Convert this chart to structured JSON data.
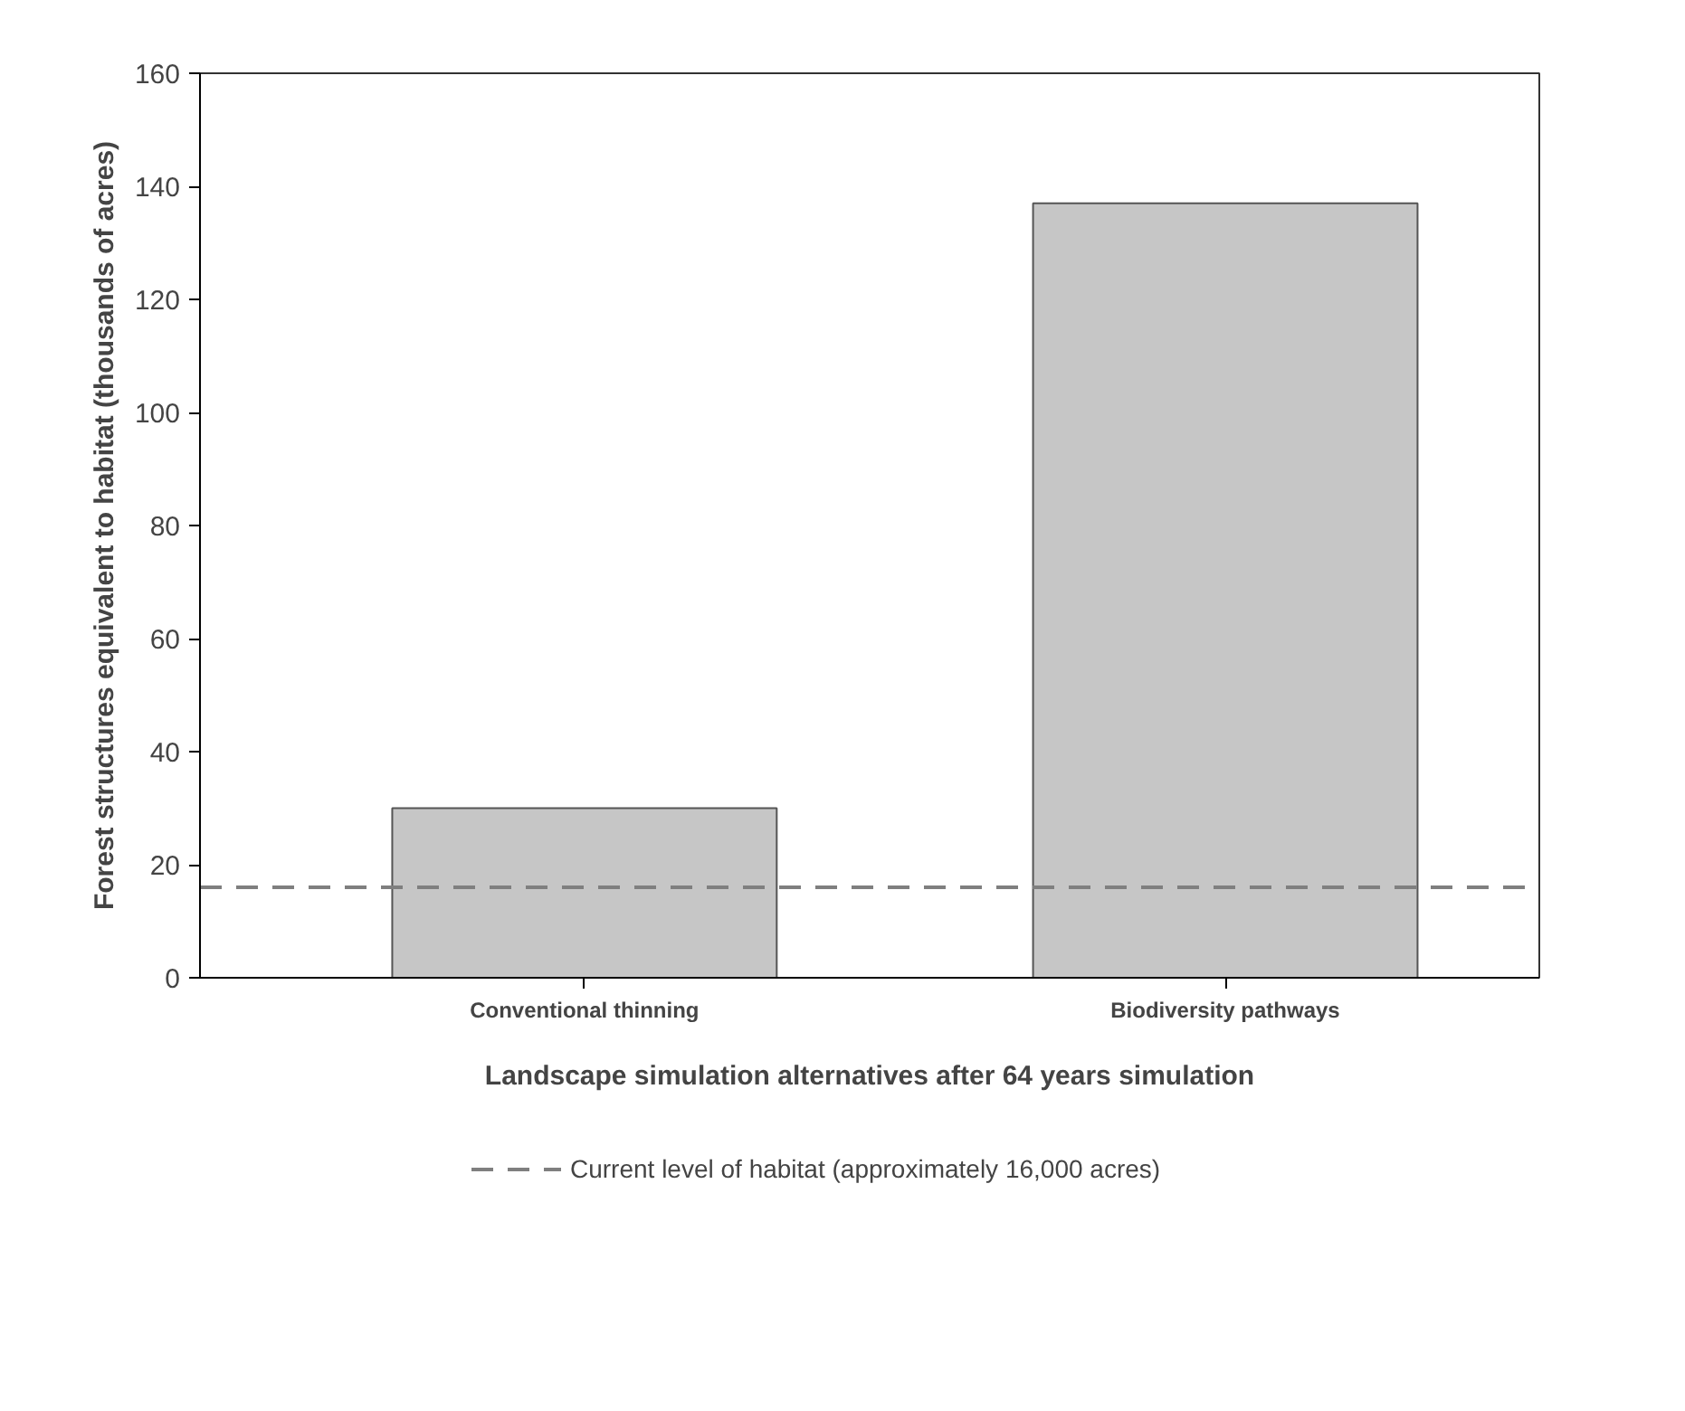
{
  "chart_data": {
    "type": "bar",
    "xlabel": "Landscape simulation alternatives after 64 years simulation",
    "ylabel": "Forest structures equivalent to habitat (thousands of acres)",
    "categories": [
      "Conventional thinning",
      "Biodiversity pathways"
    ],
    "values": [
      30,
      137
    ],
    "color": "#c6c6c6",
    "ylim": [
      0,
      160
    ],
    "yticks": [
      0,
      20,
      40,
      60,
      80,
      100,
      120,
      140,
      160
    ],
    "ref_lines": [
      {
        "axis": "y",
        "value": 16,
        "label": "Current level of habitat (approximately 16,000 acres)",
        "color": "#7f7f7f",
        "line_style": "dashed"
      }
    ],
    "grid": false,
    "legend": "bottom"
  }
}
